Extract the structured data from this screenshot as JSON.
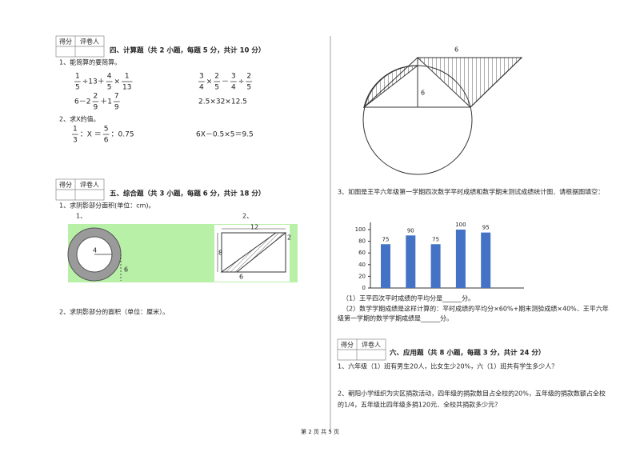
{
  "score_boxes": [
    [
      "得分",
      "评卷人"
    ],
    [
      "得分",
      "评卷人"
    ],
    [
      "得分",
      "评卷人"
    ]
  ],
  "section4": {
    "heading": "四、计算题（共 2 小题，每题 5 分，共计 10 分）",
    "q1": "1、能简算的要简算。",
    "q1_exprs": [
      [
        {
          "num": "1",
          "den": "5"
        },
        "÷13＋",
        {
          "num": "4",
          "den": "5"
        },
        "×",
        {
          "num": "1",
          "den": "13"
        }
      ],
      [
        {
          "num": "3",
          "den": "4"
        },
        "×",
        {
          "num": "2",
          "den": "5"
        },
        "－",
        {
          "num": "3",
          "den": "4"
        },
        "÷",
        {
          "num": "2",
          "den": "5"
        }
      ],
      [
        "6－2",
        {
          "num": "2",
          "den": "9"
        },
        "＋1",
        {
          "num": "7",
          "den": "9"
        }
      ],
      [
        "2.5×32×12.5"
      ]
    ],
    "q2": "2、求X的值。",
    "q2_exprs": [
      [
        {
          "num": "1",
          "den": "3"
        },
        "：X ＝ ",
        {
          "num": "5",
          "den": "6"
        },
        "：0.75"
      ],
      [
        "6X－0.5×5＝9.5"
      ]
    ]
  },
  "section5": {
    "heading": "五、综合题（共 3 小题，每题 6 分，共计 18 分）",
    "q1": "1、求阴影部分面积(单位：cm)。",
    "q1_labels": [
      "1、",
      "2、"
    ],
    "fig1_labels": [
      "4",
      "6"
    ],
    "fig2_labels": [
      "12",
      "8",
      "6",
      "2"
    ],
    "q2": "2、求阴影部分的面积（单位：厘米）。"
  },
  "right_figure_labels": [
    "6",
    "6"
  ],
  "q3": {
    "text": "3、如图是王平六年级第一学期四次数学平时成绩和数学期末测试成绩统计图．请根据图填空：",
    "chart": {
      "type": "bar",
      "values": [
        75,
        90,
        75,
        100,
        95
      ],
      "color": "#4472c4",
      "ylim": [
        0,
        100
      ],
      "yticks": [
        0,
        20,
        40,
        60,
        80,
        100
      ]
    },
    "sub1": "（1）王平四次平时成绩的平均分是______分。",
    "sub2_line1": "（2）数学学期成绩是这样计算的：平时成绩的平均分×60%+期末测验成绩×40%．王平六年",
    "sub2_line2": "级第一学期的数学学期成绩是______分。"
  },
  "section6": {
    "heading": "六、应用题（共 8 小题，每题 3 分，共计 24 分）",
    "q1": "1、六年级（1）班有男生20人，比女生少20%，六（1）班共有学生多少人？",
    "q2_line1": "2、朝阳小学组织为灾区捐款活动，四年级的捐款数目占全校的20%，五年级的捐款数额占全校",
    "q2_line2": "的1/4，五年级比四年级多捐120元．全校共捐款多少元？"
  },
  "footer": "第 2 页 共 5 页"
}
